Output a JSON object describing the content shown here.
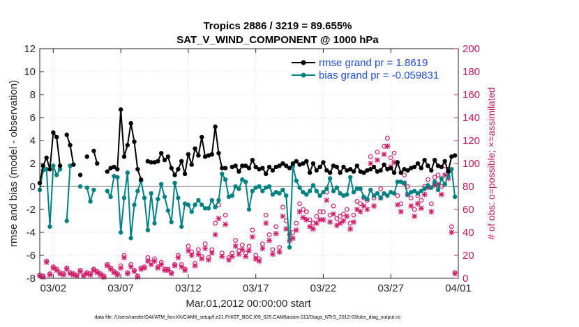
{
  "chart_data": {
    "type": "line",
    "title_line1": "Tropics 2886 / 3219 = 89.655%",
    "title_line2": "SAT_V_WIND_COMPONENT @ 1000 hPa",
    "xlabel": "Mar.01,2012 00:00:00 start",
    "ylabel_left": "rmse and bias (model - observation)",
    "ylabel_right": "# of obs: o=possible; ×=assimilated",
    "footnote": "data file: /Users/raeder/DAI/ATM_forcXX/CAM6_setup/f.e21.FHIST_BGC.f09_025.CAM6assim.011/Diags_NTrS_2012-03/obs_diag_output.nc",
    "xlim": [
      1,
      32
    ],
    "ylim_left": [
      -8,
      12
    ],
    "ylim_right": [
      0,
      200
    ],
    "x_ticks": [
      {
        "value": 2,
        "label": "03/02"
      },
      {
        "value": 7,
        "label": "03/07"
      },
      {
        "value": 12,
        "label": "03/12"
      },
      {
        "value": 17,
        "label": "03/17"
      },
      {
        "value": 22,
        "label": "03/22"
      },
      {
        "value": 27,
        "label": "03/27"
      },
      {
        "value": 32,
        "label": "04/01"
      }
    ],
    "y_ticks_left": [
      "-8",
      "-6",
      "-4",
      "-2",
      "0",
      "2",
      "4",
      "6",
      "8",
      "10",
      "12"
    ],
    "y_ticks_right": [
      "0",
      "20",
      "40",
      "60",
      "80",
      "100",
      "120",
      "140",
      "160",
      "180",
      "200"
    ],
    "y_tick_values_left": [
      -8,
      -6,
      -4,
      -2,
      0,
      2,
      4,
      6,
      8,
      10,
      12
    ],
    "y_tick_values_right": [
      0,
      20,
      40,
      60,
      80,
      100,
      120,
      140,
      160,
      180,
      200
    ],
    "zero_line": 0,
    "series": [
      {
        "name": "rmse",
        "legend": "rmse grand pr = 1.8619",
        "color": "#000000",
        "marker": "dot",
        "x": [
          1.0,
          1.25,
          1.5,
          1.75,
          2.0,
          2.25,
          2.5,
          2.75,
          3.0,
          3.25,
          3.5,
          3.75,
          4.0,
          4.25,
          4.5,
          4.75,
          5.0,
          5.25,
          5.5,
          5.75,
          6.0,
          6.25,
          6.5,
          6.75,
          7.0,
          7.25,
          7.5,
          7.75,
          8.0,
          8.25,
          8.5,
          8.75,
          9.0,
          9.25,
          9.5,
          9.75,
          10.0,
          10.25,
          10.5,
          10.75,
          11.0,
          11.25,
          11.5,
          11.75,
          12.0,
          12.25,
          12.5,
          12.75,
          13.0,
          13.25,
          13.5,
          13.75,
          14.0,
          14.25,
          14.5,
          14.75,
          15.0,
          15.25,
          15.5,
          15.75,
          16.0,
          16.25,
          16.5,
          16.75,
          17.0,
          17.25,
          17.5,
          17.75,
          18.0,
          18.25,
          18.5,
          18.75,
          19.0,
          19.25,
          19.5,
          19.75,
          20.0,
          20.25,
          20.5,
          20.75,
          21.0,
          21.25,
          21.5,
          21.75,
          22.0,
          22.25,
          22.5,
          22.75,
          23.0,
          23.25,
          23.5,
          23.75,
          24.0,
          24.25,
          24.5,
          24.75,
          25.0,
          25.25,
          25.5,
          25.75,
          26.0,
          26.25,
          26.5,
          26.75,
          27.0,
          27.25,
          27.5,
          27.75,
          28.0,
          28.25,
          28.5,
          28.75,
          29.0,
          29.25,
          29.5,
          29.75,
          30.0,
          30.25,
          30.5,
          30.75,
          31.0,
          31.25,
          31.5,
          31.75
        ],
        "y": [
          0.3,
          1.8,
          2.5,
          1.5,
          4.7,
          4.3,
          1.8,
          null,
          4.5,
          3.6,
          1.9,
          null,
          1.0,
          null,
          2.6,
          null,
          3.1,
          2.0,
          null,
          null,
          1.3,
          1.6,
          1.7,
          1.5,
          6.7,
          2.6,
          3.6,
          5.5,
          3.9,
          1.5,
          0.6,
          null,
          2.2,
          2.1,
          2.1,
          2.2,
          2.9,
          2.3,
          2.6,
          1.6,
          1.0,
          1.5,
          2.2,
          1.1,
          2.8,
          1.9,
          3.3,
          2.7,
          4.3,
          2.6,
          2.7,
          2.8,
          5.2,
          2.9,
          1.6,
          1.6,
          null,
          1.7,
          1.8,
          1.3,
          1.8,
          1.8,
          1.6,
          2.3,
          1.7,
          1.5,
          1.6,
          1.1,
          1.7,
          1.4,
          1.7,
          1.8,
          2.0,
          1.8,
          1.6,
          2.0,
          2.2,
          1.9,
          2.0,
          2.2,
          1.2,
          2.0,
          1.4,
          1.7,
          2.1,
          1.4,
          1.2,
          1.8,
          1.7,
          1.2,
          1.7,
          1.4,
          1.5,
          1.3,
          1.8,
          1.3,
          1.2,
          1.4,
          1.5,
          1.7,
          1.3,
          1.4,
          1.9,
          1.5,
          1.6,
          1.2,
          2.1,
          1.2,
          1.5,
          1.4,
          1.6,
          1.7,
          2.0,
          1.6,
          2.3,
          1.8,
          1.4,
          2.3,
          1.8,
          1.7,
          2.2,
          1.3,
          2.6,
          2.7
        ]
      },
      {
        "name": "bias",
        "legend": "bias grand pr = -0.059831",
        "color": "#008080",
        "marker": "dot",
        "x": [
          1.0,
          1.25,
          1.5,
          1.75,
          2.0,
          2.25,
          2.5,
          2.75,
          3.0,
          3.25,
          3.5,
          3.75,
          4.0,
          4.25,
          4.5,
          4.75,
          5.0,
          5.25,
          5.5,
          5.75,
          6.0,
          6.25,
          6.5,
          6.75,
          7.0,
          7.25,
          7.5,
          7.75,
          8.0,
          8.25,
          8.5,
          8.75,
          9.0,
          9.25,
          9.5,
          9.75,
          10.0,
          10.25,
          10.5,
          10.75,
          11.0,
          11.25,
          11.5,
          11.75,
          12.0,
          12.25,
          12.5,
          12.75,
          13.0,
          13.25,
          13.5,
          13.75,
          14.0,
          14.25,
          14.5,
          14.75,
          15.0,
          15.25,
          15.5,
          15.75,
          16.0,
          16.25,
          16.5,
          16.75,
          17.0,
          17.25,
          17.5,
          17.75,
          18.0,
          18.25,
          18.5,
          18.75,
          19.0,
          19.25,
          19.5,
          19.75,
          20.0,
          20.25,
          20.5,
          20.75,
          21.0,
          21.25,
          21.5,
          21.75,
          22.0,
          22.25,
          22.5,
          22.75,
          23.0,
          23.25,
          23.5,
          23.75,
          24.0,
          24.25,
          24.5,
          24.75,
          25.0,
          25.25,
          25.5,
          25.75,
          26.0,
          26.25,
          26.5,
          26.75,
          27.0,
          27.25,
          27.5,
          27.75,
          28.0,
          28.25,
          28.5,
          28.75,
          29.0,
          29.25,
          29.5,
          29.75,
          30.0,
          30.25,
          30.5,
          30.75,
          31.0,
          31.25,
          31.5,
          31.75
        ],
        "y": [
          -0.3,
          1.4,
          1.5,
          -3.5,
          1.8,
          1.0,
          1.5,
          null,
          -3.0,
          1.8,
          null,
          null,
          0.0,
          null,
          -0.1,
          -1.3,
          -0.3,
          null,
          null,
          null,
          -0.4,
          -0.9,
          0.9,
          0.8,
          -4.0,
          -1.0,
          1.2,
          -4.5,
          -1.6,
          -0.4,
          0.5,
          -1.0,
          -3.8,
          -0.6,
          -3.2,
          -1.1,
          0.2,
          -0.9,
          -2.1,
          -3.1,
          0.3,
          -1.0,
          -3.5,
          -1.5,
          -1.6,
          -2.2,
          -1.6,
          -1.2,
          -1.6,
          -1.9,
          -1.9,
          -1.2,
          -1.8,
          -1.2,
          1.1,
          0.6,
          -0.9,
          -0.8,
          0.0,
          -0.2,
          0.6,
          0.4,
          -2.0,
          -0.4,
          -0.1,
          0.0,
          -0.4,
          -0.1,
          0.0,
          -0.7,
          -0.5,
          -0.6,
          -0.3,
          -0.8,
          -5.3,
          1.8,
          0.5,
          -0.1,
          -0.5,
          -0.7,
          -0.4,
          0.1,
          -0.4,
          -0.8,
          -0.5,
          -0.2,
          0.7,
          -0.4,
          -0.1,
          -0.6,
          -0.8,
          -0.7,
          0.8,
          -0.5,
          -0.2,
          -0.2,
          -0.9,
          -1.1,
          -0.3,
          -0.8,
          -0.6,
          -1.0,
          -0.6,
          -0.8,
          -0.5,
          -0.6,
          0.4,
          0.4,
          0.3,
          -0.7,
          -0.5,
          -0.4,
          -0.6,
          -0.4,
          -0.2,
          0.1,
          -0.1,
          0.4,
          -0.3,
          0.7,
          0.2,
          0.9,
          1.5,
          -0.9
        ]
      }
    ],
    "obs_possible": {
      "marker": "circle",
      "color": "#d01c6a",
      "x": [
        1.0,
        1.25,
        1.5,
        1.75,
        2.0,
        2.25,
        2.5,
        2.75,
        3.0,
        3.25,
        3.5,
        3.75,
        4.0,
        4.25,
        4.5,
        4.75,
        5.0,
        5.25,
        5.5,
        5.75,
        6.0,
        6.25,
        6.5,
        6.75,
        7.0,
        7.25,
        7.5,
        7.75,
        8.0,
        8.25,
        8.5,
        8.75,
        9.0,
        9.25,
        9.5,
        9.75,
        10.0,
        10.25,
        10.5,
        10.75,
        11.0,
        11.25,
        11.5,
        11.75,
        12.0,
        12.25,
        12.5,
        12.75,
        13.0,
        13.25,
        13.5,
        13.75,
        14.0,
        14.25,
        14.5,
        14.75,
        15.0,
        15.25,
        15.5,
        15.75,
        16.0,
        16.25,
        16.5,
        16.75,
        17.0,
        17.25,
        17.5,
        17.75,
        18.0,
        18.25,
        18.5,
        18.75,
        19.0,
        19.25,
        19.5,
        19.75,
        20.0,
        20.25,
        20.5,
        20.75,
        21.0,
        21.25,
        21.5,
        21.75,
        22.0,
        22.25,
        22.5,
        22.75,
        23.0,
        23.25,
        23.5,
        23.75,
        24.0,
        24.25,
        24.5,
        24.75,
        25.0,
        25.25,
        25.5,
        25.75,
        26.0,
        26.25,
        26.5,
        26.75,
        27.0,
        27.25,
        27.5,
        27.75,
        28.0,
        28.25,
        28.5,
        28.75,
        29.0,
        29.25,
        29.5,
        29.75,
        30.0,
        30.25,
        30.5,
        30.75,
        31.0,
        31.25,
        31.5,
        31.75
      ],
      "y": [
        3,
        2,
        15,
        4,
        10,
        8,
        5,
        4,
        9,
        5,
        4,
        3,
        7,
        3,
        5,
        4,
        8,
        6,
        4,
        2,
        12,
        9,
        6,
        4,
        11,
        20,
        5,
        12,
        7,
        2,
        9,
        10,
        18,
        14,
        17,
        10,
        14,
        8,
        8,
        5,
        12,
        20,
        12,
        8,
        28,
        23,
        13,
        25,
        19,
        30,
        18,
        25,
        48,
        64,
        22,
        55,
        18,
        22,
        33,
        24,
        29,
        22,
        28,
        42,
        20,
        17,
        30,
        55,
        38,
        25,
        45,
        27,
        62,
        50,
        38,
        40,
        48,
        65,
        60,
        58,
        51,
        48,
        54,
        58,
        58,
        75,
        55,
        63,
        52,
        54,
        56,
        60,
        48,
        55,
        67,
        65,
        70,
        68,
        106,
        70,
        110,
        78,
        115,
        122,
        105,
        109,
        72,
        65,
        90,
        80,
        70,
        60,
        72,
        68,
        80,
        86,
        65,
        88,
        90,
        80,
        98,
        95,
        45,
        5
      ]
    },
    "obs_assimilated": {
      "marker": "x",
      "color": "#d01c6a",
      "x": [
        1.0,
        1.25,
        1.5,
        1.75,
        2.0,
        2.25,
        2.5,
        2.75,
        3.0,
        3.25,
        3.5,
        3.75,
        4.0,
        4.25,
        4.5,
        4.75,
        5.0,
        5.25,
        5.5,
        5.75,
        6.0,
        6.25,
        6.5,
        6.75,
        7.0,
        7.25,
        7.5,
        7.75,
        8.0,
        8.25,
        8.5,
        8.75,
        9.0,
        9.25,
        9.5,
        9.75,
        10.0,
        10.25,
        10.5,
        10.75,
        11.0,
        11.25,
        11.5,
        11.75,
        12.0,
        12.25,
        12.5,
        12.75,
        13.0,
        13.25,
        13.5,
        13.75,
        14.0,
        14.25,
        14.5,
        14.75,
        15.0,
        15.25,
        15.5,
        15.75,
        16.0,
        16.25,
        16.5,
        16.75,
        17.0,
        17.25,
        17.5,
        17.75,
        18.0,
        18.25,
        18.5,
        18.75,
        19.0,
        19.25,
        19.5,
        19.75,
        20.0,
        20.25,
        20.5,
        20.75,
        21.0,
        21.25,
        21.5,
        21.75,
        22.0,
        22.25,
        22.5,
        22.75,
        23.0,
        23.25,
        23.5,
        23.75,
        24.0,
        24.25,
        24.5,
        24.75,
        25.0,
        25.25,
        25.5,
        25.75,
        26.0,
        26.25,
        26.5,
        26.75,
        27.0,
        27.25,
        27.5,
        27.75,
        28.0,
        28.25,
        28.5,
        28.75,
        29.0,
        29.25,
        29.5,
        29.75,
        30.0,
        30.25,
        30.5,
        30.75,
        31.0,
        31.25,
        31.5,
        31.75
      ],
      "y": [
        2,
        1,
        14,
        3,
        9,
        7,
        4,
        3,
        8,
        4,
        3,
        2,
        6,
        2,
        4,
        3,
        7,
        5,
        3,
        1,
        11,
        8,
        5,
        3,
        9,
        18,
        4,
        10,
        6,
        1,
        8,
        9,
        15,
        12,
        15,
        9,
        12,
        7,
        7,
        4,
        11,
        18,
        10,
        7,
        24,
        20,
        11,
        21,
        17,
        26,
        16,
        22,
        38,
        52,
        19,
        47,
        16,
        19,
        28,
        21,
        25,
        19,
        24,
        36,
        17,
        15,
        26,
        48,
        33,
        21,
        39,
        23,
        54,
        43,
        33,
        35,
        42,
        58,
        53,
        51,
        45,
        43,
        48,
        51,
        51,
        68,
        49,
        56,
        46,
        48,
        50,
        54,
        43,
        49,
        60,
        58,
        63,
        60,
        100,
        63,
        103,
        70,
        108,
        115,
        97,
        101,
        64,
        58,
        83,
        73,
        63,
        54,
        65,
        61,
        73,
        79,
        58,
        81,
        82,
        73,
        90,
        87,
        40,
        4
      ]
    }
  }
}
